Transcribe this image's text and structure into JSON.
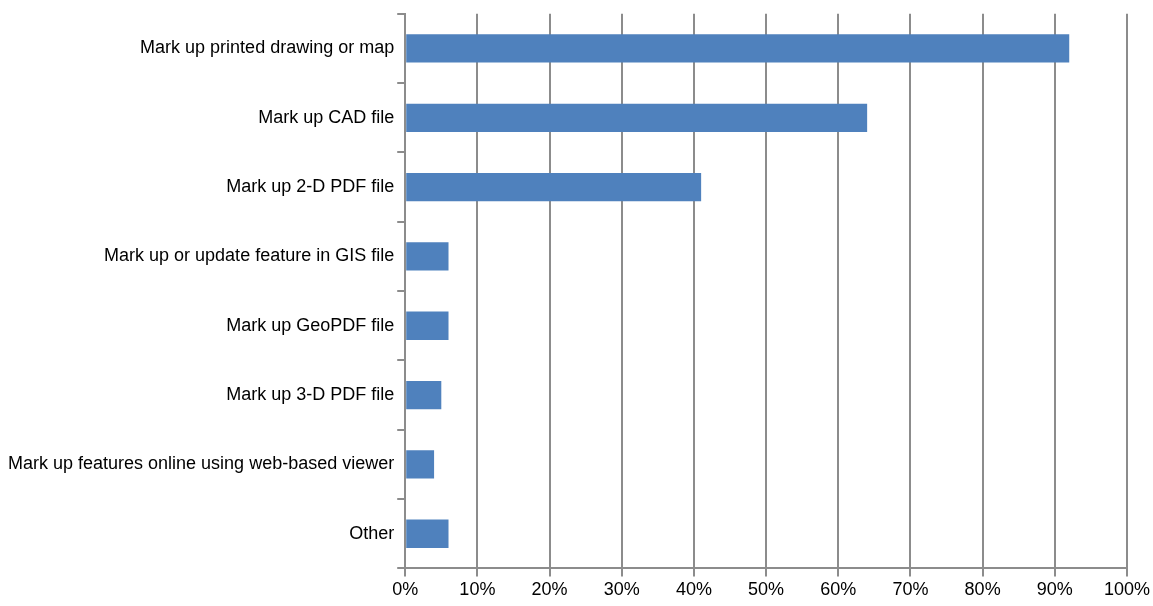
{
  "chart_data": {
    "type": "bar",
    "orientation": "horizontal",
    "categories": [
      "Mark up printed drawing or map",
      "Mark up CAD file",
      "Mark up 2-D PDF file",
      "Mark up or update feature in GIS file",
      "Mark up GeoPDF file",
      "Mark up 3-D PDF file",
      "Mark up features online using web-based viewer",
      "Other"
    ],
    "values": [
      92,
      64,
      41,
      6,
      6,
      5,
      4,
      6
    ],
    "color": "#4f81bd",
    "xlim": [
      0,
      100
    ],
    "xticks": [
      {
        "value": 0,
        "label": "0%"
      },
      {
        "value": 10,
        "label": "10%"
      },
      {
        "value": 20,
        "label": "20%"
      },
      {
        "value": 30,
        "label": "30%"
      },
      {
        "value": 40,
        "label": "40%"
      },
      {
        "value": 50,
        "label": "50%"
      },
      {
        "value": 60,
        "label": "60%"
      },
      {
        "value": 70,
        "label": "70%"
      },
      {
        "value": 80,
        "label": "80%"
      },
      {
        "value": 90,
        "label": "90%"
      },
      {
        "value": 100,
        "label": "100%"
      }
    ],
    "grid": "x"
  }
}
